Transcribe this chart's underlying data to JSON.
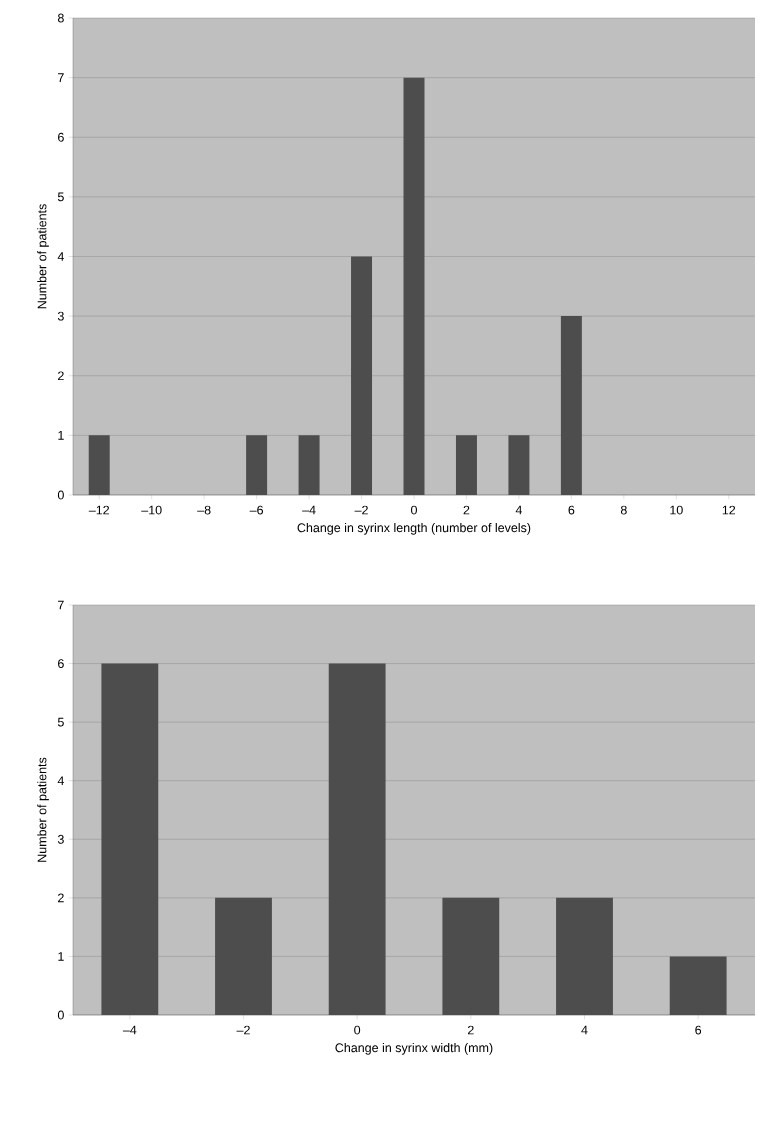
{
  "chart_data": [
    {
      "type": "bar",
      "categories": [
        "–12",
        "–10",
        "–8",
        "–6",
        "–4",
        "–2",
        "0",
        "2",
        "4",
        "6",
        "8",
        "10",
        "12"
      ],
      "values": [
        1,
        0,
        0,
        1,
        1,
        4,
        7,
        1,
        1,
        3,
        0,
        0,
        0
      ],
      "color": "#4d4d4d",
      "ylim": [
        0,
        8
      ],
      "yticks": [
        0,
        1,
        2,
        3,
        4,
        5,
        6,
        7,
        8
      ],
      "grid": "y",
      "xlabel": "Change in syrinx length (number of levels)",
      "ylabel": "Number of patients"
    },
    {
      "type": "bar",
      "categories": [
        "–4",
        "–2",
        "0",
        "2",
        "4",
        "6"
      ],
      "values": [
        6,
        2,
        6,
        2,
        2,
        1
      ],
      "color": "#4d4d4d",
      "ylim": [
        0,
        7
      ],
      "yticks": [
        0,
        1,
        2,
        3,
        4,
        5,
        6,
        7
      ],
      "grid": "y",
      "xlabel": "Change in syrinx width (mm)",
      "ylabel": "Number of patients"
    }
  ]
}
